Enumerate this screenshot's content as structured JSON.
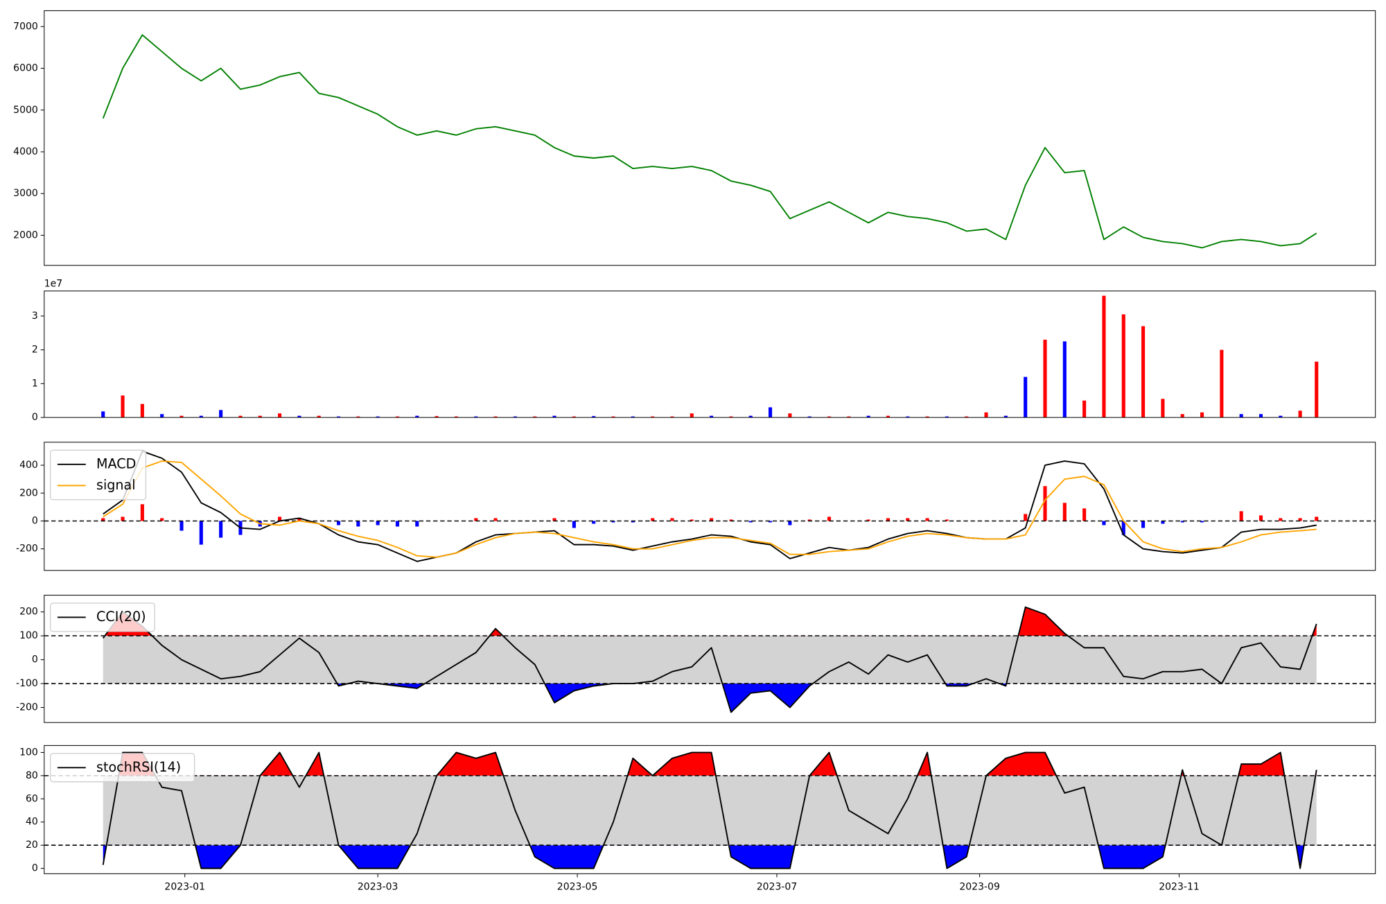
{
  "chart_data": [
    {
      "type": "line",
      "x": [
        -25,
        -19,
        -13,
        -7,
        -1,
        5,
        11,
        17,
        23,
        29,
        35,
        41,
        47,
        53,
        59,
        65,
        71,
        77,
        83,
        89,
        95,
        101,
        107,
        113,
        119,
        125,
        131,
        137,
        143,
        149,
        155,
        161,
        167,
        173,
        179,
        185,
        191,
        197,
        203,
        209,
        215,
        221,
        227,
        233,
        239,
        245,
        251,
        257,
        263,
        269,
        275,
        281,
        287,
        293,
        299,
        305,
        311,
        317,
        323,
        329,
        335,
        341,
        346
      ],
      "xlim": [
        -43,
        364
      ],
      "ylim": [
        1280,
        7380
      ],
      "yticks": [
        2000,
        3000,
        4000,
        5000,
        6000,
        7000
      ],
      "series": [
        {
          "color": "#008000",
          "values": [
            4800,
            6000,
            6800,
            6400,
            6000,
            5700,
            6000,
            5500,
            5600,
            5800,
            5900,
            5400,
            5300,
            5100,
            4900,
            4600,
            4400,
            4500,
            4400,
            4550,
            4600,
            4500,
            4400,
            4100,
            3900,
            3850,
            3900,
            3600,
            3650,
            3600,
            3650,
            3550,
            3300,
            3200,
            3050,
            2400,
            2600,
            2800,
            2550,
            2300,
            2550,
            2450,
            2400,
            2300,
            2100,
            2150,
            1900,
            3200,
            4100,
            3500,
            3550,
            1900,
            2200,
            1950,
            1850,
            1800,
            1700,
            1850,
            1900,
            1850,
            1750,
            1800,
            2050
          ]
        }
      ]
    },
    {
      "type": "bar",
      "x": [
        -25,
        -19,
        -13,
        -7,
        -1,
        5,
        11,
        17,
        23,
        29,
        35,
        41,
        47,
        53,
        59,
        65,
        71,
        77,
        83,
        89,
        95,
        101,
        107,
        113,
        119,
        125,
        131,
        137,
        143,
        149,
        155,
        161,
        167,
        173,
        179,
        185,
        191,
        197,
        203,
        209,
        215,
        221,
        227,
        233,
        239,
        245,
        251,
        257,
        263,
        269,
        275,
        281,
        287,
        293,
        299,
        305,
        311,
        317,
        323,
        329,
        335,
        341,
        346
      ],
      "xlim": [
        -43,
        364
      ],
      "ylim": [
        0,
        3.74
      ],
      "yticks": [
        0,
        1,
        2,
        3
      ],
      "y_offset_label": "1e7",
      "values": [
        0.18,
        0.65,
        0.4,
        0.1,
        0.05,
        0.05,
        0.22,
        0.05,
        0.05,
        0.12,
        0.05,
        0.05,
        0.03,
        0.03,
        0.03,
        0.03,
        0.05,
        0.04,
        0.03,
        0.03,
        0.03,
        0.03,
        0.03,
        0.05,
        0.03,
        0.04,
        0.03,
        0.03,
        0.03,
        0.03,
        0.12,
        0.05,
        0.03,
        0.05,
        0.3,
        0.12,
        0.03,
        0.03,
        0.03,
        0.05,
        0.05,
        0.03,
        0.03,
        0.03,
        0.03,
        0.15,
        0.05,
        1.2,
        2.3,
        2.25,
        0.5,
        3.6,
        3.05,
        2.7,
        0.55,
        0.1,
        0.15,
        2.0,
        0.1,
        0.1,
        0.05,
        0.2,
        1.65
      ],
      "colors": [
        "blue",
        "red",
        "red",
        "blue",
        "red",
        "blue",
        "blue",
        "red",
        "red",
        "red",
        "blue",
        "red",
        "blue",
        "red",
        "blue",
        "red",
        "blue",
        "red",
        "red",
        "blue",
        "red",
        "blue",
        "red",
        "blue",
        "red",
        "blue",
        "red",
        "blue",
        "red",
        "red",
        "red",
        "blue",
        "red",
        "blue",
        "blue",
        "red",
        "blue",
        "red",
        "red",
        "blue",
        "red",
        "blue",
        "red",
        "blue",
        "red",
        "red",
        "blue",
        "blue",
        "red",
        "blue",
        "red",
        "red",
        "red",
        "red",
        "red",
        "red",
        "red",
        "red",
        "blue",
        "blue",
        "blue",
        "red",
        "red"
      ]
    },
    {
      "type": "macd",
      "x": [
        -25,
        -19,
        -13,
        -7,
        -1,
        5,
        11,
        17,
        23,
        29,
        35,
        41,
        47,
        53,
        59,
        65,
        71,
        77,
        83,
        89,
        95,
        101,
        107,
        113,
        119,
        125,
        131,
        137,
        143,
        149,
        155,
        161,
        167,
        173,
        179,
        185,
        191,
        197,
        203,
        209,
        215,
        221,
        227,
        233,
        239,
        245,
        251,
        257,
        263,
        269,
        275,
        281,
        287,
        293,
        299,
        305,
        311,
        317,
        323,
        329,
        335,
        341,
        346
      ],
      "xlim": [
        -43,
        364
      ],
      "ylim": [
        -355,
        565
      ],
      "yticks": [
        -200,
        0,
        200,
        400
      ],
      "hlines": [
        0
      ],
      "legend": "upper left",
      "series": [
        {
          "name": "MACD",
          "color": "#000000",
          "values": [
            50,
            150,
            500,
            450,
            350,
            130,
            60,
            -50,
            -60,
            0,
            20,
            -20,
            -100,
            -150,
            -170,
            -230,
            -290,
            -260,
            -230,
            -150,
            -100,
            -90,
            -80,
            -70,
            -170,
            -170,
            -180,
            -210,
            -180,
            -150,
            -130,
            -100,
            -110,
            -150,
            -170,
            -270,
            -230,
            -190,
            -210,
            -190,
            -130,
            -90,
            -70,
            -90,
            -120,
            -130,
            -130,
            -50,
            400,
            430,
            410,
            230,
            -100,
            -200,
            -220,
            -230,
            -210,
            -190,
            -80,
            -60,
            -60,
            -50,
            -30
          ]
        },
        {
          "name": "signal",
          "color": "#ffa500",
          "values": [
            30,
            120,
            380,
            430,
            420,
            300,
            180,
            50,
            -20,
            -30,
            0,
            -20,
            -70,
            -110,
            -140,
            -190,
            -250,
            -260,
            -230,
            -170,
            -120,
            -90,
            -80,
            -90,
            -120,
            -150,
            -170,
            -200,
            -200,
            -170,
            -140,
            -120,
            -120,
            -140,
            -160,
            -240,
            -240,
            -220,
            -210,
            -200,
            -150,
            -110,
            -90,
            -100,
            -120,
            -130,
            -130,
            -100,
            150,
            300,
            320,
            260,
            0,
            -150,
            -200,
            -220,
            -200,
            -190,
            -150,
            -100,
            -80,
            -70,
            -60
          ]
        }
      ],
      "histogram": {
        "positive_color": "red",
        "negative_color": "blue",
        "values": [
          20,
          30,
          120,
          20,
          -70,
          -170,
          -120,
          -100,
          -40,
          30,
          20,
          0,
          -30,
          -40,
          -30,
          -40,
          -40,
          0,
          0,
          20,
          20,
          0,
          0,
          20,
          -50,
          -20,
          -10,
          -10,
          20,
          20,
          10,
          20,
          10,
          -10,
          -10,
          -30,
          10,
          30,
          0,
          10,
          20,
          20,
          20,
          10,
          0,
          0,
          0,
          50,
          250,
          130,
          90,
          -30,
          -100,
          -50,
          -20,
          -10,
          -10,
          0,
          70,
          40,
          20,
          20,
          30
        ]
      }
    },
    {
      "type": "oscillator",
      "x": [
        -25,
        -19,
        -13,
        -7,
        -1,
        5,
        11,
        17,
        23,
        29,
        35,
        41,
        47,
        53,
        59,
        65,
        71,
        77,
        83,
        89,
        95,
        101,
        107,
        113,
        119,
        125,
        131,
        137,
        143,
        149,
        155,
        161,
        167,
        173,
        179,
        185,
        191,
        197,
        203,
        209,
        215,
        221,
        227,
        233,
        239,
        245,
        251,
        257,
        263,
        269,
        275,
        281,
        287,
        293,
        299,
        305,
        311,
        317,
        323,
        329,
        335,
        341,
        346
      ],
      "xlim": [
        -43,
        364
      ],
      "ylim": [
        -263,
        270
      ],
      "yticks": [
        -200,
        -100,
        0,
        100,
        200
      ],
      "upper": 100,
      "lower": -100,
      "band_color": "#d3d3d3",
      "upper_color": "red",
      "lower_color": "blue",
      "legend": "upper left",
      "series": [
        {
          "name": "CCI(20)",
          "color": "#000000",
          "values": [
            90,
            200,
            140,
            60,
            0,
            -40,
            -80,
            -70,
            -50,
            20,
            90,
            30,
            -110,
            -90,
            -100,
            -110,
            -120,
            -70,
            -20,
            30,
            130,
            50,
            -20,
            -180,
            -130,
            -110,
            -100,
            -100,
            -90,
            -50,
            -30,
            50,
            -220,
            -140,
            -130,
            -200,
            -110,
            -50,
            -10,
            -60,
            20,
            -10,
            20,
            -110,
            -110,
            -80,
            -110,
            220,
            190,
            110,
            50,
            50,
            -70,
            -80,
            -50,
            -50,
            -40,
            -100,
            50,
            70,
            -30,
            -40,
            150
          ]
        }
      ]
    },
    {
      "type": "oscillator",
      "x": [
        -25,
        -19,
        -13,
        -7,
        -1,
        5,
        11,
        17,
        23,
        29,
        35,
        41,
        47,
        53,
        59,
        65,
        71,
        77,
        83,
        89,
        95,
        101,
        107,
        113,
        119,
        125,
        131,
        137,
        143,
        149,
        155,
        161,
        167,
        173,
        179,
        185,
        191,
        197,
        203,
        209,
        215,
        221,
        227,
        233,
        239,
        245,
        251,
        257,
        263,
        269,
        275,
        281,
        287,
        293,
        299,
        305,
        311,
        317,
        323,
        329,
        335,
        341,
        346
      ],
      "xlim": [
        -43,
        364
      ],
      "xticks": [
        {
          "value": 0,
          "label": "2023-01"
        },
        {
          "value": 59,
          "label": "2023-03"
        },
        {
          "value": 120,
          "label": "2023-05"
        },
        {
          "value": 181,
          "label": "2023-07"
        },
        {
          "value": 243,
          "label": "2023-09"
        },
        {
          "value": 304,
          "label": "2023-11"
        }
      ],
      "ylim": [
        -4.6,
        106
      ],
      "yticks": [
        0,
        20,
        40,
        60,
        80,
        100
      ],
      "upper": 80,
      "lower": 20,
      "band_color": "#d3d3d3",
      "upper_color": "red",
      "lower_color": "blue",
      "legend": "upper left",
      "series": [
        {
          "name": "stochRSI(14)",
          "color": "#000000",
          "values": [
            3,
            100,
            100,
            70,
            67,
            0,
            0,
            20,
            80,
            100,
            70,
            100,
            20,
            0,
            0,
            0,
            30,
            80,
            100,
            95,
            100,
            50,
            10,
            0,
            0,
            0,
            40,
            95,
            80,
            95,
            100,
            100,
            10,
            0,
            0,
            0,
            80,
            100,
            50,
            40,
            30,
            60,
            100,
            0,
            10,
            80,
            95,
            100,
            100,
            65,
            70,
            0,
            0,
            0,
            10,
            85,
            30,
            20,
            90,
            90,
            100,
            0,
            85
          ]
        }
      ]
    }
  ]
}
